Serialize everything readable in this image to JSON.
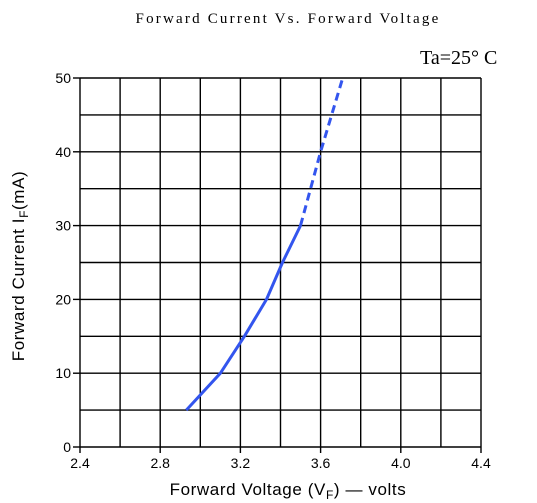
{
  "chart_data": {
    "type": "line",
    "title": "Forward Current Vs. Forward Voltage",
    "annotation": "Ta=25° C",
    "xlabel": {
      "main": "Forward Voltage (V",
      "sub": "F",
      "end": ") — volts"
    },
    "ylabel": {
      "main": "Forward Current I",
      "sub": "F",
      "end": "(mA)"
    },
    "xlim": [
      2.4,
      4.4
    ],
    "ylim": [
      0,
      50
    ],
    "x_ticks": [
      2.4,
      2.8,
      3.2,
      3.6,
      4.0,
      4.4
    ],
    "x_tick_labels": [
      "2.4",
      "2.8",
      "3.2",
      "3.6",
      "4.0",
      "4.4"
    ],
    "y_ticks": [
      0,
      10,
      20,
      30,
      40,
      50
    ],
    "y_tick_labels": [
      "0",
      "10",
      "20",
      "30",
      "40",
      "50"
    ],
    "x_grid_step": 0.2,
    "y_grid_step": 5,
    "grid": true,
    "series": [
      {
        "style": "solid",
        "color": "#3355ee",
        "points": [
          [
            2.93,
            5
          ],
          [
            3.1,
            10
          ],
          [
            3.22,
            15
          ],
          [
            3.33,
            20
          ],
          [
            3.41,
            25
          ],
          [
            3.5,
            30
          ]
        ]
      },
      {
        "style": "dashed",
        "color": "#3355ee",
        "points": [
          [
            3.5,
            30
          ],
          [
            3.6,
            40
          ],
          [
            3.71,
            50
          ]
        ]
      }
    ]
  }
}
